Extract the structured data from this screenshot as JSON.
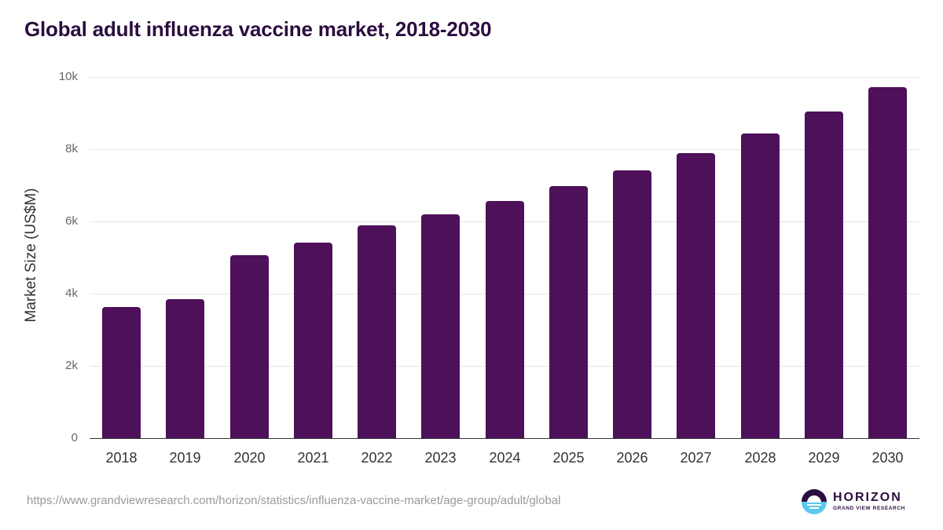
{
  "title": "Global adult influenza vaccine market, 2018-2030",
  "source_url": "https://www.grandviewresearch.com/horizon/statistics/influenza-vaccine-market/age-group/adult/global",
  "logo": {
    "name": "HORIZON",
    "subtitle": "GRAND VIEW RESEARCH"
  },
  "colors": {
    "bar": "#4d1059",
    "title": "#2b0d3e",
    "logo_dark": "#2b0d3e",
    "logo_light": "#5bc8ee"
  },
  "chart_data": {
    "type": "bar",
    "title": "Global adult influenza vaccine market, 2018-2030",
    "xlabel": "",
    "ylabel": "Market Size (US$M)",
    "ylim": [
      0,
      10000
    ],
    "y_ticks": [
      "0",
      "2k",
      "4k",
      "6k",
      "8k",
      "10k"
    ],
    "grid": true,
    "legend": null,
    "categories": [
      "2018",
      "2019",
      "2020",
      "2021",
      "2022",
      "2023",
      "2024",
      "2025",
      "2026",
      "2027",
      "2028",
      "2029",
      "2030"
    ],
    "values": [
      3640,
      3850,
      5070,
      5410,
      5890,
      6200,
      6570,
      6980,
      7410,
      7890,
      8430,
      9040,
      9720
    ]
  }
}
